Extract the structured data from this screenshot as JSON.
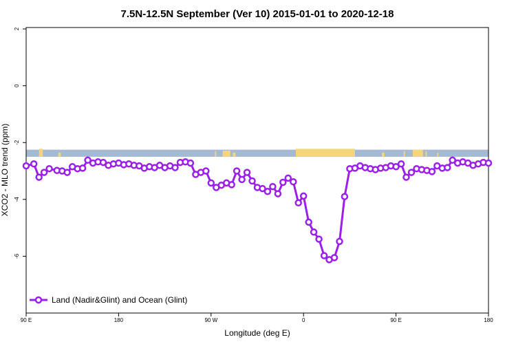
{
  "chart_data": {
    "type": "line",
    "title": "7.5N-12.5N September (Ver 10)   2015-01-01 to 2020-12-18",
    "xlabel": "Longitude (deg E)",
    "ylabel": "XCO2 - MLO trend (ppm)",
    "xlim": [
      90,
      450
    ],
    "ylim": [
      -8,
      2.05
    ],
    "x_ticks": [
      {
        "value": 90,
        "label": "90 E"
      },
      {
        "value": 162,
        "label": "180"
      },
      {
        "value": 234,
        "label": "90 W"
      },
      {
        "value": 306,
        "label": "0"
      },
      {
        "value": 378,
        "label": "90 E"
      },
      {
        "value": 450,
        "label": "180"
      }
    ],
    "y_ticks": [
      {
        "value": 2,
        "label": "2"
      },
      {
        "value": 0,
        "label": "0"
      },
      {
        "value": -2,
        "label": "-2"
      },
      {
        "value": -4,
        "label": "-4"
      },
      {
        "value": -6,
        "label": "-6"
      }
    ],
    "grid": false,
    "legend": {
      "position": "bottom-left"
    },
    "landmask": {
      "y_top": -2.25,
      "y_bottom": -2.5,
      "ocean_color": "#a4b9d4",
      "land_color": "#f5d57a",
      "land_segments": [
        [
          100,
          103,
          -2.22
        ],
        [
          115,
          117,
          -2.35
        ],
        [
          237,
          238,
          -2.3
        ],
        [
          243,
          249,
          -2.28
        ],
        [
          251,
          253,
          -2.35
        ],
        [
          300,
          346,
          -2.22
        ],
        [
          367,
          369,
          -2.35
        ],
        [
          384,
          385,
          -2.3
        ],
        [
          391,
          399,
          -2.25
        ],
        [
          401,
          402,
          -2.3
        ],
        [
          410,
          411,
          -2.35
        ]
      ]
    },
    "series": [
      {
        "name": "Land (Nadir&Glint) and Ocean (Glint)",
        "color": "#9b1fe8",
        "x": [
          90,
          96,
          100,
          104,
          108,
          114,
          118,
          122,
          126,
          130,
          134,
          138,
          142,
          146,
          150,
          154,
          158,
          162,
          166,
          170,
          174,
          178,
          182,
          186,
          190,
          194,
          198,
          202,
          206,
          210,
          214,
          218,
          222,
          226,
          230,
          234,
          238,
          242,
          246,
          250,
          254,
          258,
          262,
          266,
          270,
          274,
          278,
          282,
          286,
          290,
          294,
          298,
          302,
          306,
          310,
          314,
          318,
          322,
          326,
          330,
          334,
          338,
          342,
          346,
          350,
          354,
          358,
          362,
          366,
          370,
          374,
          378,
          382,
          386,
          390,
          394,
          398,
          402,
          406,
          410,
          414,
          418,
          422,
          426,
          430,
          434,
          438,
          442,
          446,
          450
        ],
        "y": [
          -2.82,
          -2.75,
          -3.22,
          -3.05,
          -2.92,
          -2.98,
          -3.0,
          -3.05,
          -2.85,
          -2.92,
          -2.9,
          -2.62,
          -2.72,
          -2.68,
          -2.7,
          -2.8,
          -2.75,
          -2.72,
          -2.78,
          -2.75,
          -2.8,
          -2.82,
          -2.9,
          -2.85,
          -2.88,
          -2.8,
          -2.88,
          -2.82,
          -2.88,
          -2.7,
          -2.68,
          -2.72,
          -3.12,
          -3.05,
          -3.0,
          -3.42,
          -3.58,
          -3.5,
          -3.42,
          -3.48,
          -3.0,
          -3.3,
          -3.05,
          -3.35,
          -3.58,
          -3.62,
          -3.72,
          -3.55,
          -3.8,
          -3.4,
          -3.25,
          -3.38,
          -4.12,
          -3.88,
          -4.8,
          -5.15,
          -5.4,
          -5.98,
          -6.12,
          -6.05,
          -5.48,
          -3.9,
          -2.92,
          -2.9,
          -2.82,
          -2.88,
          -2.92,
          -2.95,
          -2.9,
          -2.88,
          -2.82,
          -2.85,
          -2.75,
          -3.22,
          -3.05,
          -2.92,
          -2.95,
          -2.98,
          -3.02,
          -2.82,
          -2.9,
          -2.88,
          -2.62,
          -2.72,
          -2.68,
          -2.72,
          -2.8,
          -2.75,
          -2.7,
          -2.72
        ]
      }
    ]
  }
}
